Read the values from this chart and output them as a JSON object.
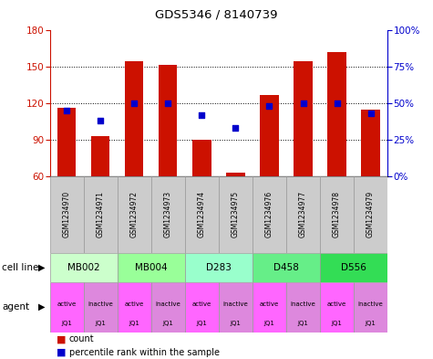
{
  "title": "GDS5346 / 8140739",
  "samples": [
    "GSM1234970",
    "GSM1234971",
    "GSM1234972",
    "GSM1234973",
    "GSM1234974",
    "GSM1234975",
    "GSM1234976",
    "GSM1234977",
    "GSM1234978",
    "GSM1234979"
  ],
  "counts": [
    116,
    93,
    155,
    152,
    90,
    63,
    127,
    155,
    162,
    115
  ],
  "percentile_ranks": [
    45,
    38,
    50,
    50,
    42,
    33,
    48,
    50,
    50,
    43
  ],
  "count_base": 60,
  "count_ylim": [
    60,
    180
  ],
  "count_yticks": [
    60,
    90,
    120,
    150,
    180
  ],
  "percentile_ylim": [
    0,
    100
  ],
  "percentile_yticks": [
    0,
    25,
    50,
    75,
    100
  ],
  "percentile_ytick_labels": [
    "0%",
    "25%",
    "50%",
    "75%",
    "100%"
  ],
  "cell_lines": [
    {
      "name": "MB002",
      "span": [
        0,
        2
      ],
      "color": "#ccffcc"
    },
    {
      "name": "MB004",
      "span": [
        2,
        4
      ],
      "color": "#99ff99"
    },
    {
      "name": "D283",
      "span": [
        4,
        6
      ],
      "color": "#99ffcc"
    },
    {
      "name": "D458",
      "span": [
        6,
        8
      ],
      "color": "#66ee88"
    },
    {
      "name": "D556",
      "span": [
        8,
        10
      ],
      "color": "#33dd55"
    }
  ],
  "agents": [
    {
      "label": "active\nJQ1",
      "color": "#ff66ff"
    },
    {
      "label": "inactive\nJQ1",
      "color": "#dd88dd"
    },
    {
      "label": "active\nJQ1",
      "color": "#ff66ff"
    },
    {
      "label": "inactive\nJQ1",
      "color": "#dd88dd"
    },
    {
      "label": "active\nJQ1",
      "color": "#ff66ff"
    },
    {
      "label": "inactive\nJQ1",
      "color": "#dd88dd"
    },
    {
      "label": "active\nJQ1",
      "color": "#ff66ff"
    },
    {
      "label": "inactive\nJQ1",
      "color": "#dd88dd"
    },
    {
      "label": "active\nJQ1",
      "color": "#ff66ff"
    },
    {
      "label": "inactive\nJQ1",
      "color": "#dd88dd"
    }
  ],
  "bar_color": "#cc1100",
  "dot_color": "#0000cc",
  "left_axis_color": "#cc1100",
  "right_axis_color": "#0000cc",
  "bg_color": "#ffffff",
  "legend_count_color": "#cc1100",
  "legend_dot_color": "#0000cc",
  "sample_box_color": "#cccccc",
  "grid_yticks": [
    90,
    120,
    150
  ]
}
